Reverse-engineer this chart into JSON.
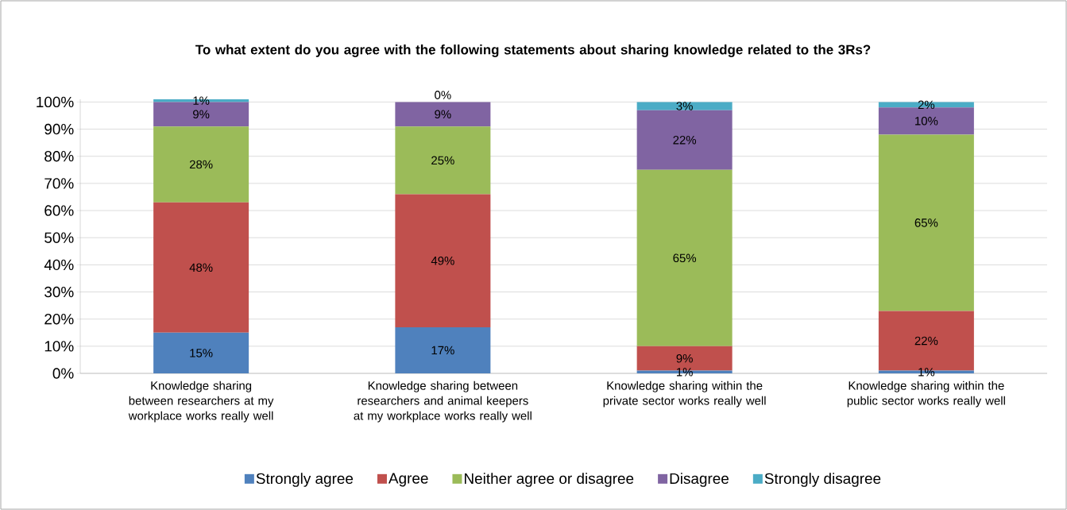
{
  "chart_data": {
    "type": "bar",
    "stacked": true,
    "title": "To what extent do you agree with the following statements about sharing knowledge related to the 3Rs?",
    "categories": [
      "Knowledge sharing between researchers at my workplace works really well",
      "Knowledge sharing between researchers and animal keepers at my workplace works really well",
      "Knowledge sharing within the private sector works really well",
      "Knowledge sharing within the public sector works really well"
    ],
    "series": [
      {
        "name": "Strongly agree",
        "color": "#4f81bd",
        "values": [
          15,
          17,
          1,
          1
        ],
        "value_labels": [
          "15%",
          "17%",
          "1%",
          "1%"
        ]
      },
      {
        "name": "Agree",
        "color": "#c0504d",
        "values": [
          48,
          49,
          9,
          22
        ],
        "value_labels": [
          "48%",
          "49%",
          "9%",
          "22%"
        ]
      },
      {
        "name": "Neither agree or disagree",
        "color": "#9bbb59",
        "values": [
          28,
          25,
          65,
          65
        ],
        "value_labels": [
          "28%",
          "25%",
          "65%",
          "65%"
        ]
      },
      {
        "name": "Disagree",
        "color": "#8064a2",
        "values": [
          9,
          9,
          22,
          10
        ],
        "value_labels": [
          "9%",
          "9%",
          "22%",
          "10%"
        ]
      },
      {
        "name": "Strongly disagree",
        "color": "#4bacc6",
        "values": [
          1,
          0,
          3,
          2
        ],
        "value_labels": [
          "1%",
          "0%",
          "3%",
          "2%"
        ]
      }
    ],
    "ylim": [
      0,
      101
    ],
    "yticks": [
      {
        "value": 0,
        "label": "0%"
      },
      {
        "value": 10,
        "label": "10%"
      },
      {
        "value": 20,
        "label": "20%"
      },
      {
        "value": 30,
        "label": "30%"
      },
      {
        "value": 40,
        "label": "40%"
      },
      {
        "value": 50,
        "label": "50%"
      },
      {
        "value": 60,
        "label": "60%"
      },
      {
        "value": 70,
        "label": "70%"
      },
      {
        "value": 80,
        "label": "80%"
      },
      {
        "value": 90,
        "label": "90%"
      },
      {
        "value": 100,
        "label": "100%"
      }
    ],
    "grid": "y",
    "legend": "bottom"
  }
}
